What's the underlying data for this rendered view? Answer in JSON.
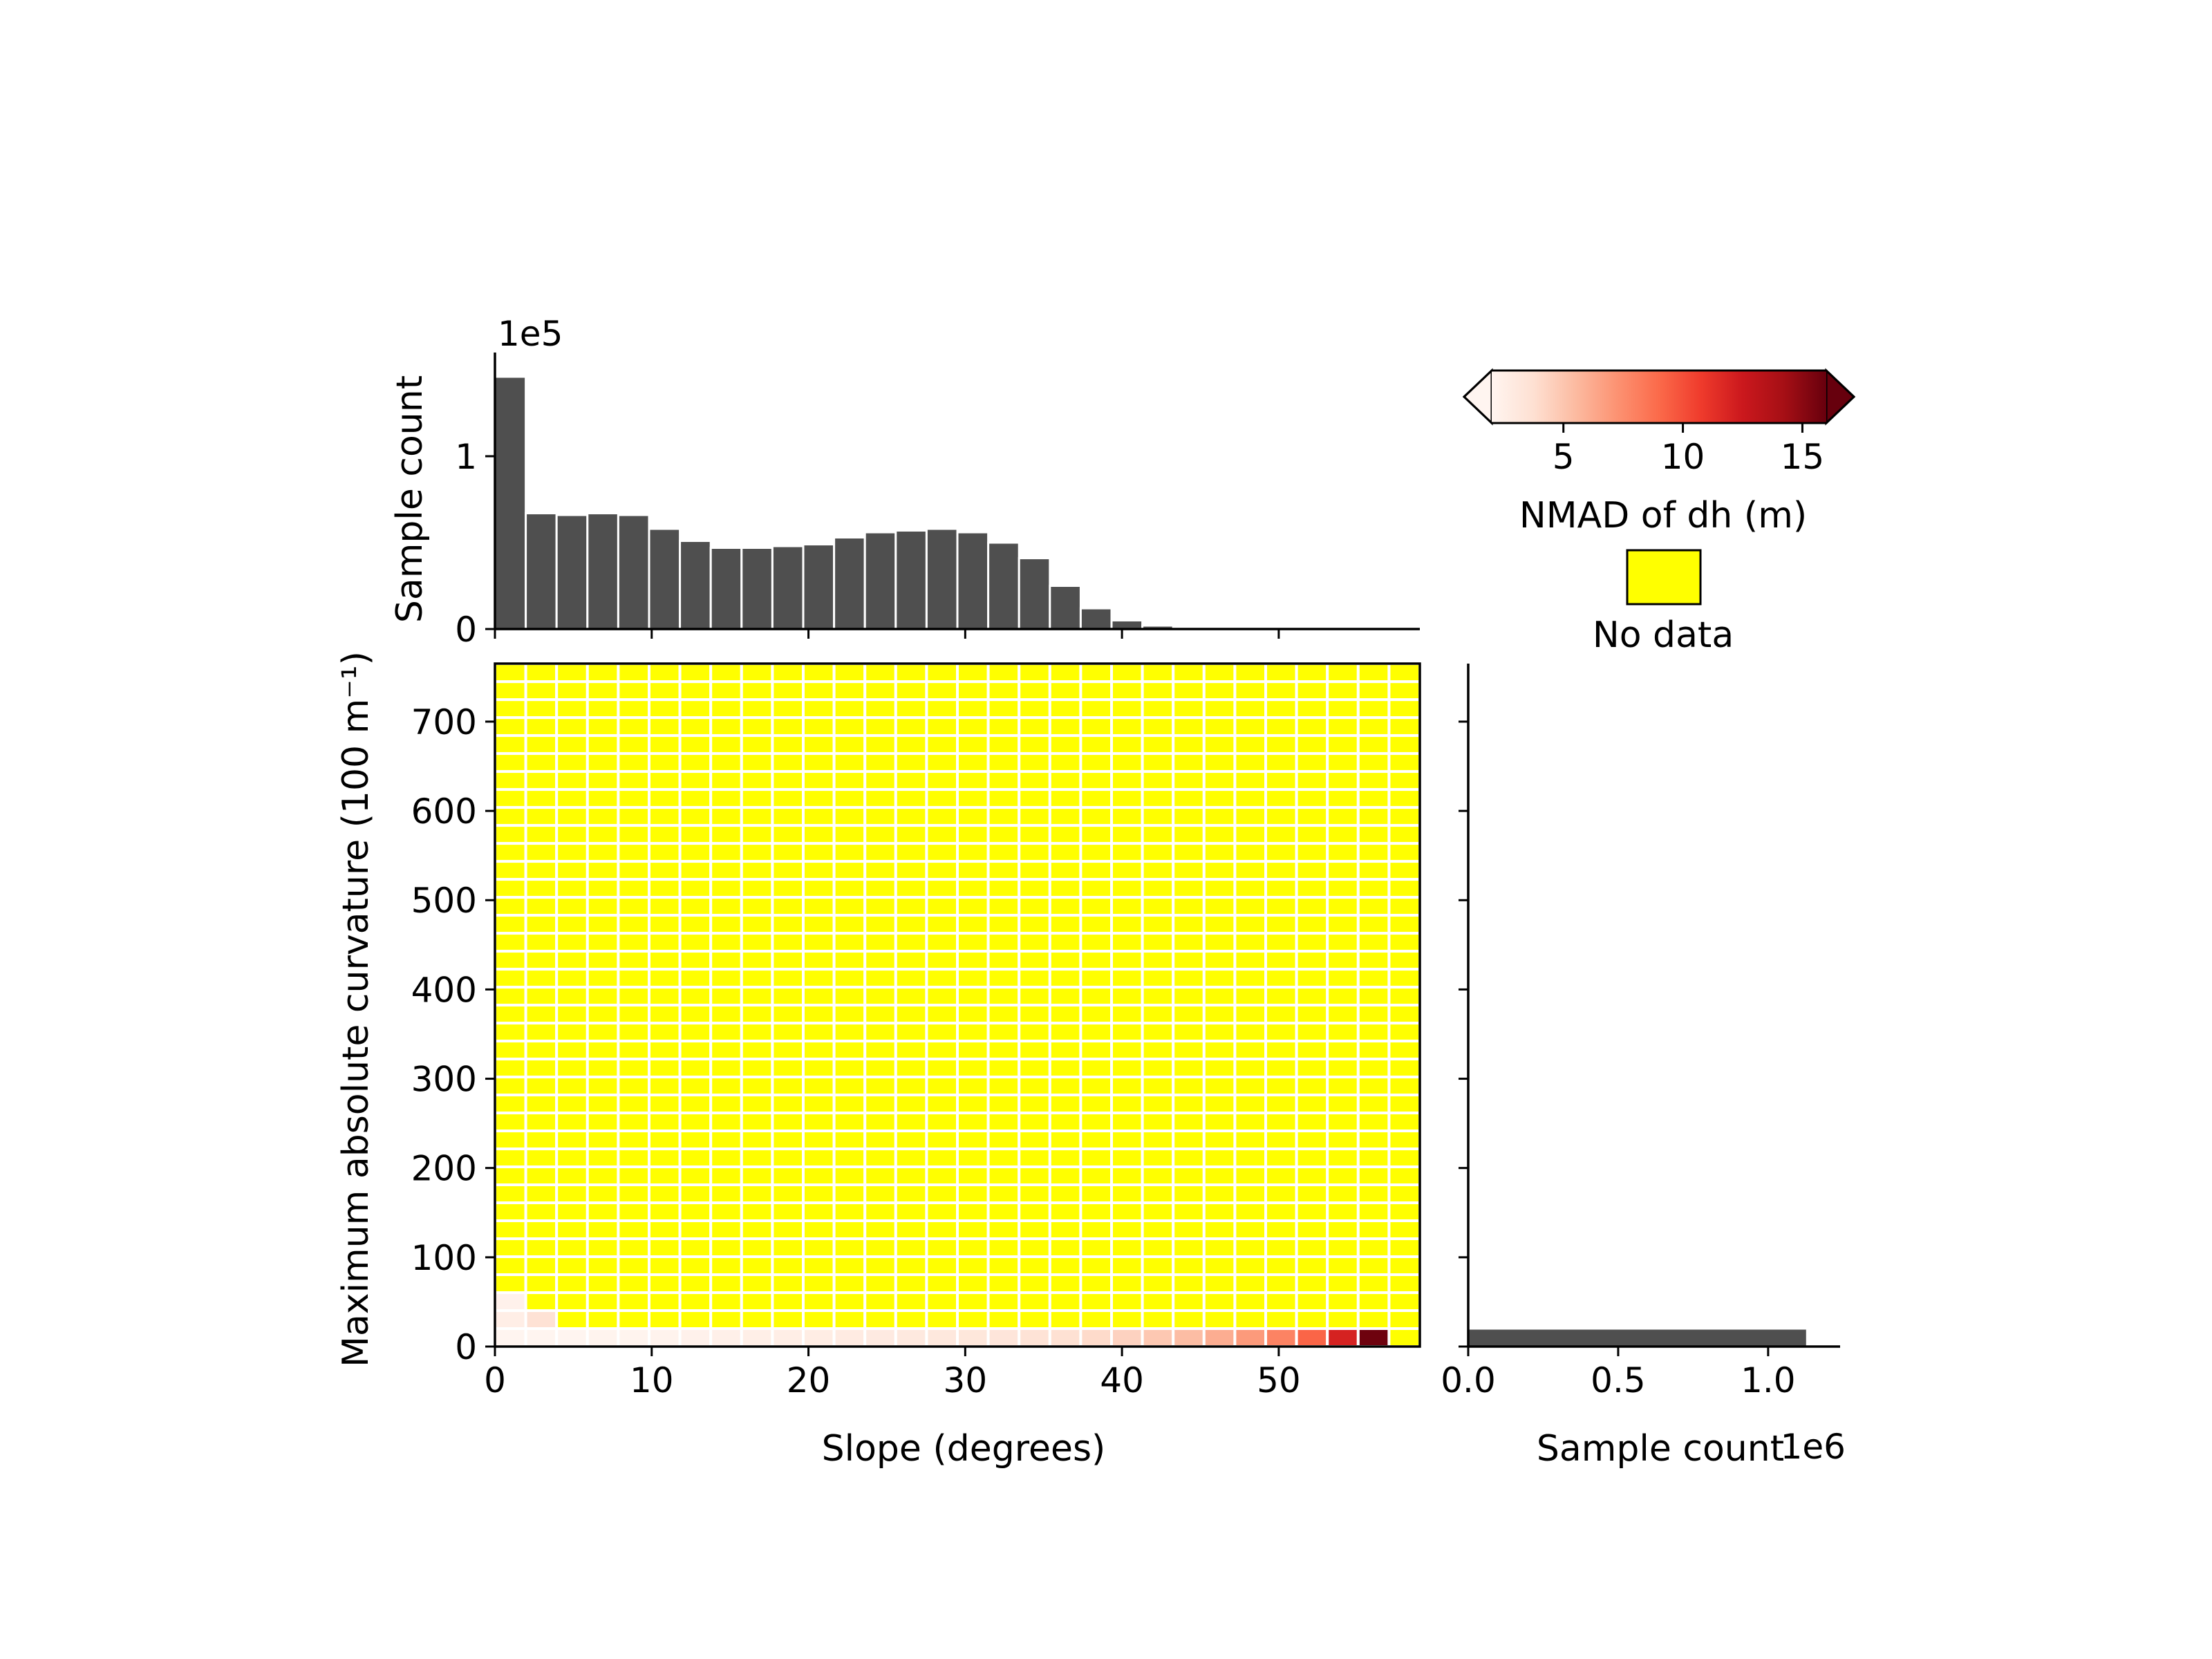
{
  "chart_data": {
    "type": "heatmap",
    "main": {
      "xlabel": "Slope (degrees)",
      "ylabel": "Maximum absolute curvature (100 m⁻¹)",
      "xlim": [
        0,
        59
      ],
      "ylim": [
        0,
        765
      ],
      "xticks": [
        0,
        10,
        20,
        30,
        40,
        50
      ],
      "yticks": [
        0,
        100,
        200,
        300,
        400,
        500,
        600,
        700
      ],
      "n_slope_bins": 30,
      "n_curv_bins": 38,
      "bin_width_slope": 1.9667,
      "bin_width_curv": 20.13,
      "nodata_color": "#ffff00",
      "grid_color": "#ffffff",
      "cells": [
        {
          "slope_bin": 0,
          "curv_bin": 0,
          "nmad": 2.0
        },
        {
          "slope_bin": 1,
          "curv_bin": 0,
          "nmad": 2.0
        },
        {
          "slope_bin": 2,
          "curv_bin": 0,
          "nmad": 2.0
        },
        {
          "slope_bin": 3,
          "curv_bin": 0,
          "nmad": 2.1
        },
        {
          "slope_bin": 4,
          "curv_bin": 0,
          "nmad": 2.1
        },
        {
          "slope_bin": 5,
          "curv_bin": 0,
          "nmad": 2.2
        },
        {
          "slope_bin": 6,
          "curv_bin": 0,
          "nmad": 2.3
        },
        {
          "slope_bin": 7,
          "curv_bin": 0,
          "nmad": 2.4
        },
        {
          "slope_bin": 8,
          "curv_bin": 0,
          "nmad": 2.5
        },
        {
          "slope_bin": 9,
          "curv_bin": 0,
          "nmad": 2.6
        },
        {
          "slope_bin": 10,
          "curv_bin": 0,
          "nmad": 2.7
        },
        {
          "slope_bin": 11,
          "curv_bin": 0,
          "nmad": 2.8
        },
        {
          "slope_bin": 12,
          "curv_bin": 0,
          "nmad": 2.9
        },
        {
          "slope_bin": 13,
          "curv_bin": 0,
          "nmad": 3.0
        },
        {
          "slope_bin": 14,
          "curv_bin": 0,
          "nmad": 3.1
        },
        {
          "slope_bin": 15,
          "curv_bin": 0,
          "nmad": 3.2
        },
        {
          "slope_bin": 16,
          "curv_bin": 0,
          "nmad": 3.3
        },
        {
          "slope_bin": 17,
          "curv_bin": 0,
          "nmad": 3.5
        },
        {
          "slope_bin": 18,
          "curv_bin": 0,
          "nmad": 3.7
        },
        {
          "slope_bin": 19,
          "curv_bin": 0,
          "nmad": 4.0
        },
        {
          "slope_bin": 20,
          "curv_bin": 0,
          "nmad": 4.4
        },
        {
          "slope_bin": 21,
          "curv_bin": 0,
          "nmad": 4.9
        },
        {
          "slope_bin": 22,
          "curv_bin": 0,
          "nmad": 5.4
        },
        {
          "slope_bin": 23,
          "curv_bin": 0,
          "nmad": 6.1
        },
        {
          "slope_bin": 24,
          "curv_bin": 0,
          "nmad": 6.9
        },
        {
          "slope_bin": 25,
          "curv_bin": 0,
          "nmad": 7.9
        },
        {
          "slope_bin": 26,
          "curv_bin": 0,
          "nmad": 9.2
        },
        {
          "slope_bin": 27,
          "curv_bin": 0,
          "nmad": 12.0
        },
        {
          "slope_bin": 28,
          "curv_bin": 0,
          "nmad": 15.8
        },
        {
          "slope_bin": 0,
          "curv_bin": 1,
          "nmad": 2.6
        },
        {
          "slope_bin": 1,
          "curv_bin": 1,
          "nmad": 3.6
        },
        {
          "slope_bin": 0,
          "curv_bin": 2,
          "nmad": 2.3
        }
      ]
    },
    "top_histogram": {
      "type": "bar",
      "ylabel": "Sample count",
      "offset_label": "1e5",
      "yticks": [
        0,
        1
      ],
      "ylim": [
        0,
        1.6
      ],
      "bin_edges_start": 0,
      "bin_width": 1.9667,
      "values": [
        1.46,
        0.67,
        0.66,
        0.67,
        0.66,
        0.58,
        0.51,
        0.47,
        0.47,
        0.48,
        0.49,
        0.53,
        0.56,
        0.57,
        0.58,
        0.56,
        0.5,
        0.41,
        0.25,
        0.12,
        0.05,
        0.02,
        0.005,
        0.002,
        0.001,
        0.0005,
        0.0003,
        0.0002,
        0.0001,
        0.0
      ]
    },
    "right_histogram": {
      "type": "bar",
      "orientation": "horizontal",
      "xlabel": "Sample count",
      "offset_label": "1e6",
      "xticks": [
        0.0,
        0.5,
        1.0
      ],
      "xtick_labels": [
        "0.0",
        "0.5",
        "1.0"
      ],
      "xlim": [
        0,
        1.24
      ],
      "values": [
        1.13,
        0.0004,
        0.0001
      ]
    },
    "colorbar": {
      "label": "NMAD of dh (m)",
      "cmap": "Reds",
      "range": [
        2,
        16
      ],
      "ticks": [
        5,
        10,
        15
      ],
      "extend": "both",
      "stops": [
        "#fff5f0",
        "#fee0d2",
        "#fcbba1",
        "#fc9272",
        "#fb6a4a",
        "#ef3b2c",
        "#cb181d",
        "#a50f15",
        "#67000d"
      ]
    },
    "legend": {
      "nodata_label": "No data",
      "nodata_color": "#ffff00"
    },
    "bar_color": "#4f4f4f"
  }
}
